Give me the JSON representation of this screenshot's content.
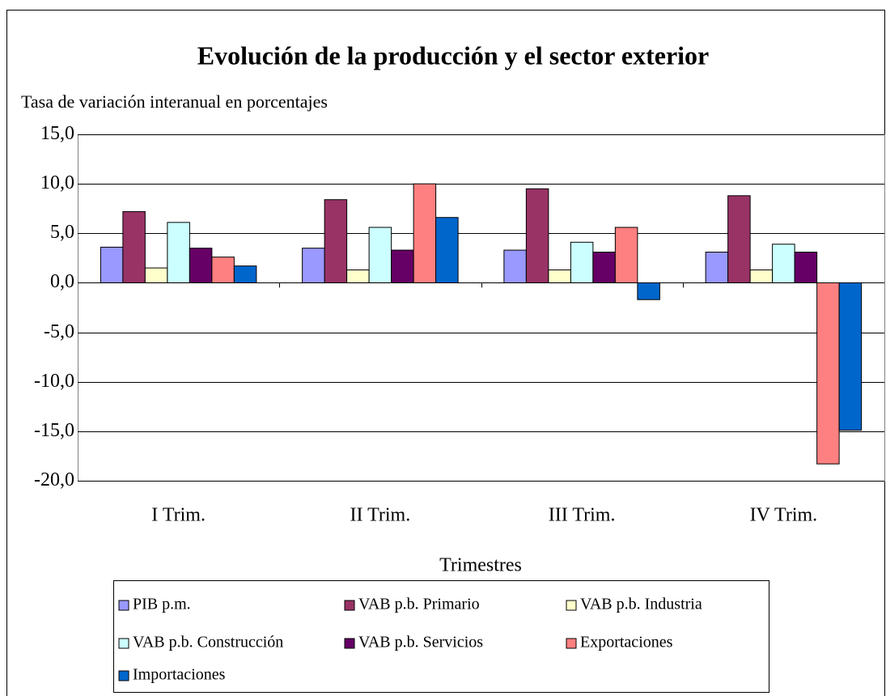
{
  "chart_data": {
    "type": "bar",
    "title": "Evolución de la producción y el sector exterior",
    "subtitle": "Tasa de variación interanual en porcentajes",
    "x_label": "Trimestres",
    "categories": [
      "I Trim.",
      "II Trim.",
      "III Trim.",
      "IV Trim."
    ],
    "series": [
      {
        "name": "PIB p.m.",
        "color": "#9999ff",
        "values": [
          3.6,
          3.5,
          3.3,
          3.1
        ]
      },
      {
        "name": "VAB p.b. Primario",
        "color": "#993366",
        "values": [
          7.2,
          8.4,
          9.5,
          8.8
        ]
      },
      {
        "name": "VAB p.b. Industria",
        "color": "#ffffcc",
        "values": [
          1.5,
          1.3,
          1.3,
          1.3
        ]
      },
      {
        "name": "VAB p.b. Construcción",
        "color": "#ccffff",
        "values": [
          6.1,
          5.6,
          4.1,
          3.9
        ]
      },
      {
        "name": "VAB p.b. Servicios",
        "color": "#660066",
        "values": [
          3.5,
          3.3,
          3.1,
          3.1
        ]
      },
      {
        "name": "Exportaciones",
        "color": "#ff8080",
        "values": [
          2.6,
          10.0,
          5.6,
          -18.3
        ]
      },
      {
        "name": "Importaciones",
        "color": "#0066cc",
        "values": [
          1.7,
          6.6,
          -1.7,
          -14.9
        ]
      }
    ],
    "ylim": [
      -20,
      15
    ],
    "yticks": [
      {
        "value": -20,
        "label": "-20,0"
      },
      {
        "value": -15,
        "label": "-15,0"
      },
      {
        "value": -10,
        "label": "-10,0"
      },
      {
        "value": -5,
        "label": "-5,0"
      },
      {
        "value": 0,
        "label": "0,0"
      },
      {
        "value": 5,
        "label": "5,0"
      },
      {
        "value": 10,
        "label": "10,0"
      },
      {
        "value": 15,
        "label": "15,0"
      }
    ],
    "grid": true
  }
}
